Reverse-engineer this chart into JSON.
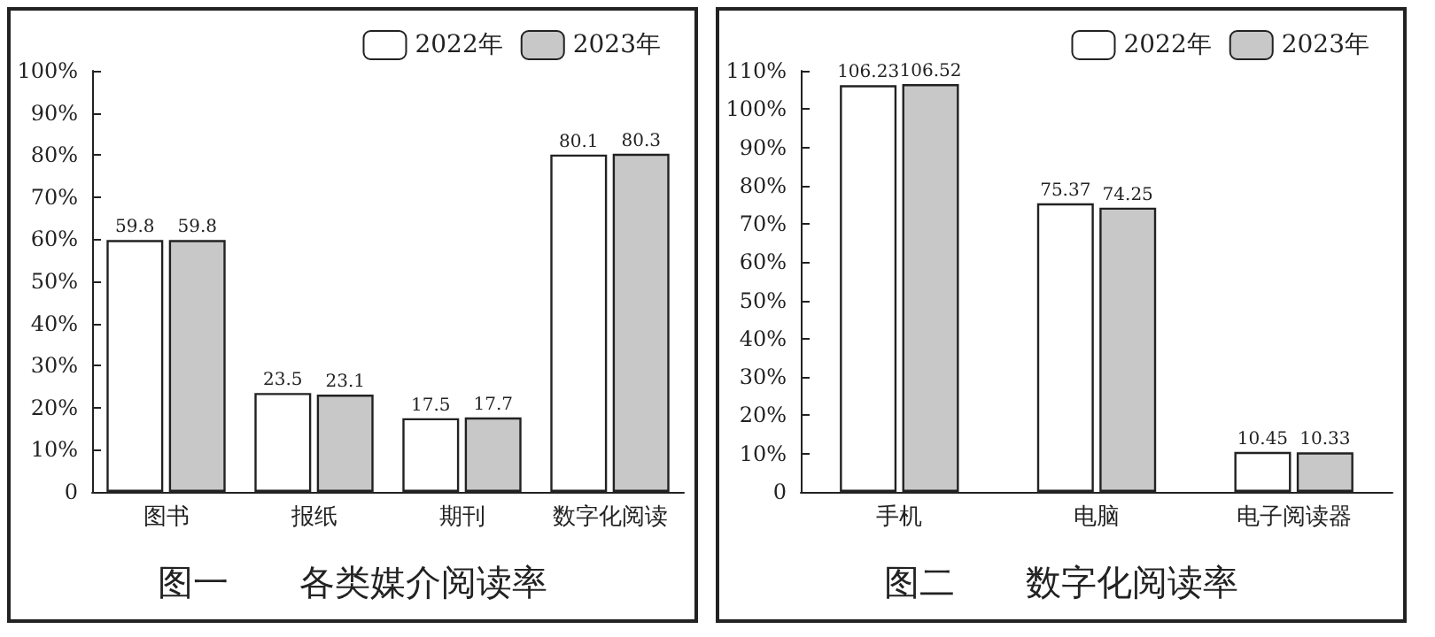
{
  "chart_data": [
    {
      "type": "bar",
      "title": "图一　　各类媒介阅读率",
      "categories": [
        "图书",
        "报纸",
        "期刊",
        "数字化阅读"
      ],
      "series": [
        {
          "name": "2022年",
          "color": "#ffffff",
          "values": [
            59.8,
            23.5,
            17.5,
            80.1
          ]
        },
        {
          "name": "2023年",
          "color": "#c8c8c8",
          "values": [
            59.8,
            23.1,
            17.7,
            80.3
          ]
        }
      ],
      "ylim": [
        0,
        100
      ],
      "yticks": [
        0,
        {
          "value": 10,
          "label": "10%"
        },
        {
          "value": 20,
          "label": "20%"
        },
        {
          "value": 30,
          "label": "30%"
        },
        {
          "value": 40,
          "label": "40%"
        },
        {
          "value": 50,
          "label": "50%"
        },
        {
          "value": 60,
          "label": "60%"
        },
        {
          "value": 70,
          "label": "70%"
        },
        {
          "value": 80,
          "label": "80%"
        },
        {
          "value": 90,
          "label": "90%"
        },
        {
          "value": 100,
          "label": "100%"
        }
      ],
      "data_labels": true,
      "grid": false,
      "legend": "top right"
    },
    {
      "type": "bar",
      "title": "图二　　数字化阅读率",
      "categories": [
        "手机",
        "电脑",
        "电子阅读器"
      ],
      "series": [
        {
          "name": "2022年",
          "color": "#ffffff",
          "values": [
            106.23,
            75.37,
            10.45
          ]
        },
        {
          "name": "2023年",
          "color": "#c8c8c8",
          "values": [
            106.52,
            74.25,
            10.33
          ]
        }
      ],
      "ylim": [
        0,
        110
      ],
      "yticks": [
        0,
        {
          "value": 10,
          "label": "10%"
        },
        {
          "value": 20,
          "label": "20%"
        },
        {
          "value": 30,
          "label": "30%"
        },
        {
          "value": 40,
          "label": "40%"
        },
        {
          "value": 50,
          "label": "50%"
        },
        {
          "value": 60,
          "label": "60%"
        },
        {
          "value": 70,
          "label": "70%"
        },
        {
          "value": 80,
          "label": "80%"
        },
        {
          "value": 90,
          "label": "90%"
        },
        {
          "value": 100,
          "label": "100%"
        },
        {
          "value": 110,
          "label": "110%"
        }
      ],
      "data_labels": true,
      "grid": false,
      "legend": "top right"
    }
  ]
}
